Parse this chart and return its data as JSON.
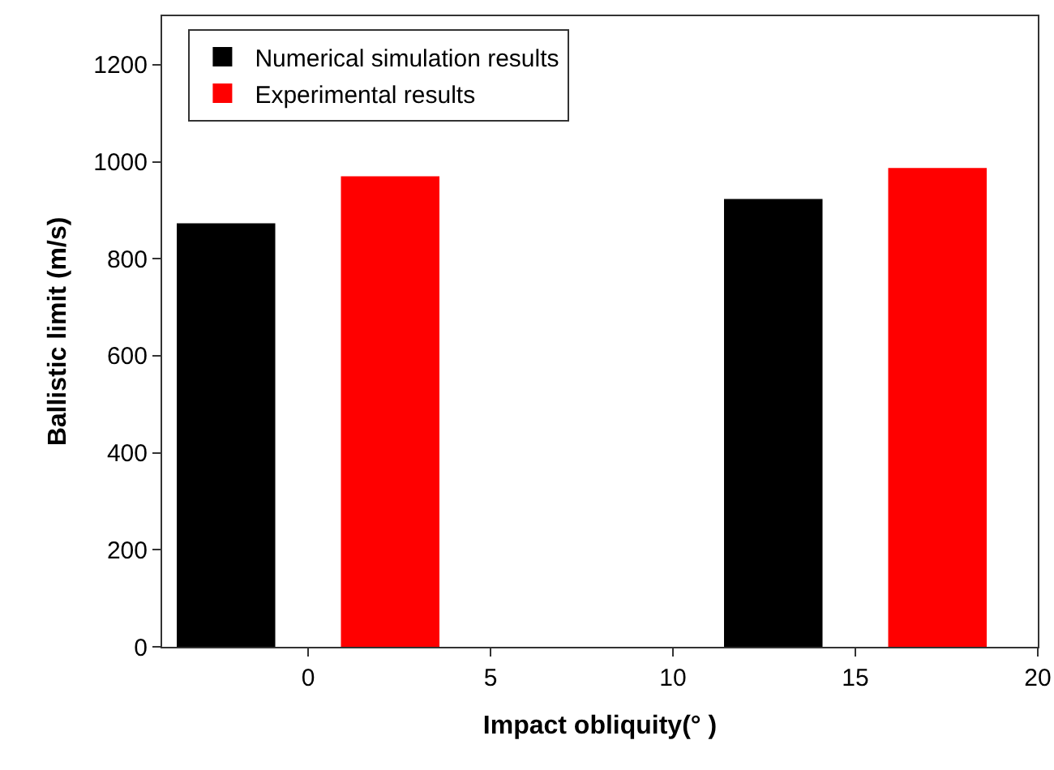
{
  "chart_data": {
    "type": "bar",
    "xlabel": "Impact obliquity(° )",
    "ylabel": "Ballistic limit (m/s)",
    "x": [
      0,
      15
    ],
    "series": [
      {
        "name": "Numerical simulation results",
        "color": "#000000",
        "values": [
          873,
          923
        ]
      },
      {
        "name": "Experimental results",
        "color": "#ff0000",
        "values": [
          970,
          987
        ]
      }
    ],
    "xlim": [
      -4,
      20
    ],
    "xticks": [
      0,
      5,
      10,
      15,
      20
    ],
    "ylim": [
      0,
      1300
    ],
    "yticks": [
      0,
      200,
      400,
      600,
      800,
      1000,
      1200
    ],
    "grid": false,
    "legend": "top left"
  }
}
